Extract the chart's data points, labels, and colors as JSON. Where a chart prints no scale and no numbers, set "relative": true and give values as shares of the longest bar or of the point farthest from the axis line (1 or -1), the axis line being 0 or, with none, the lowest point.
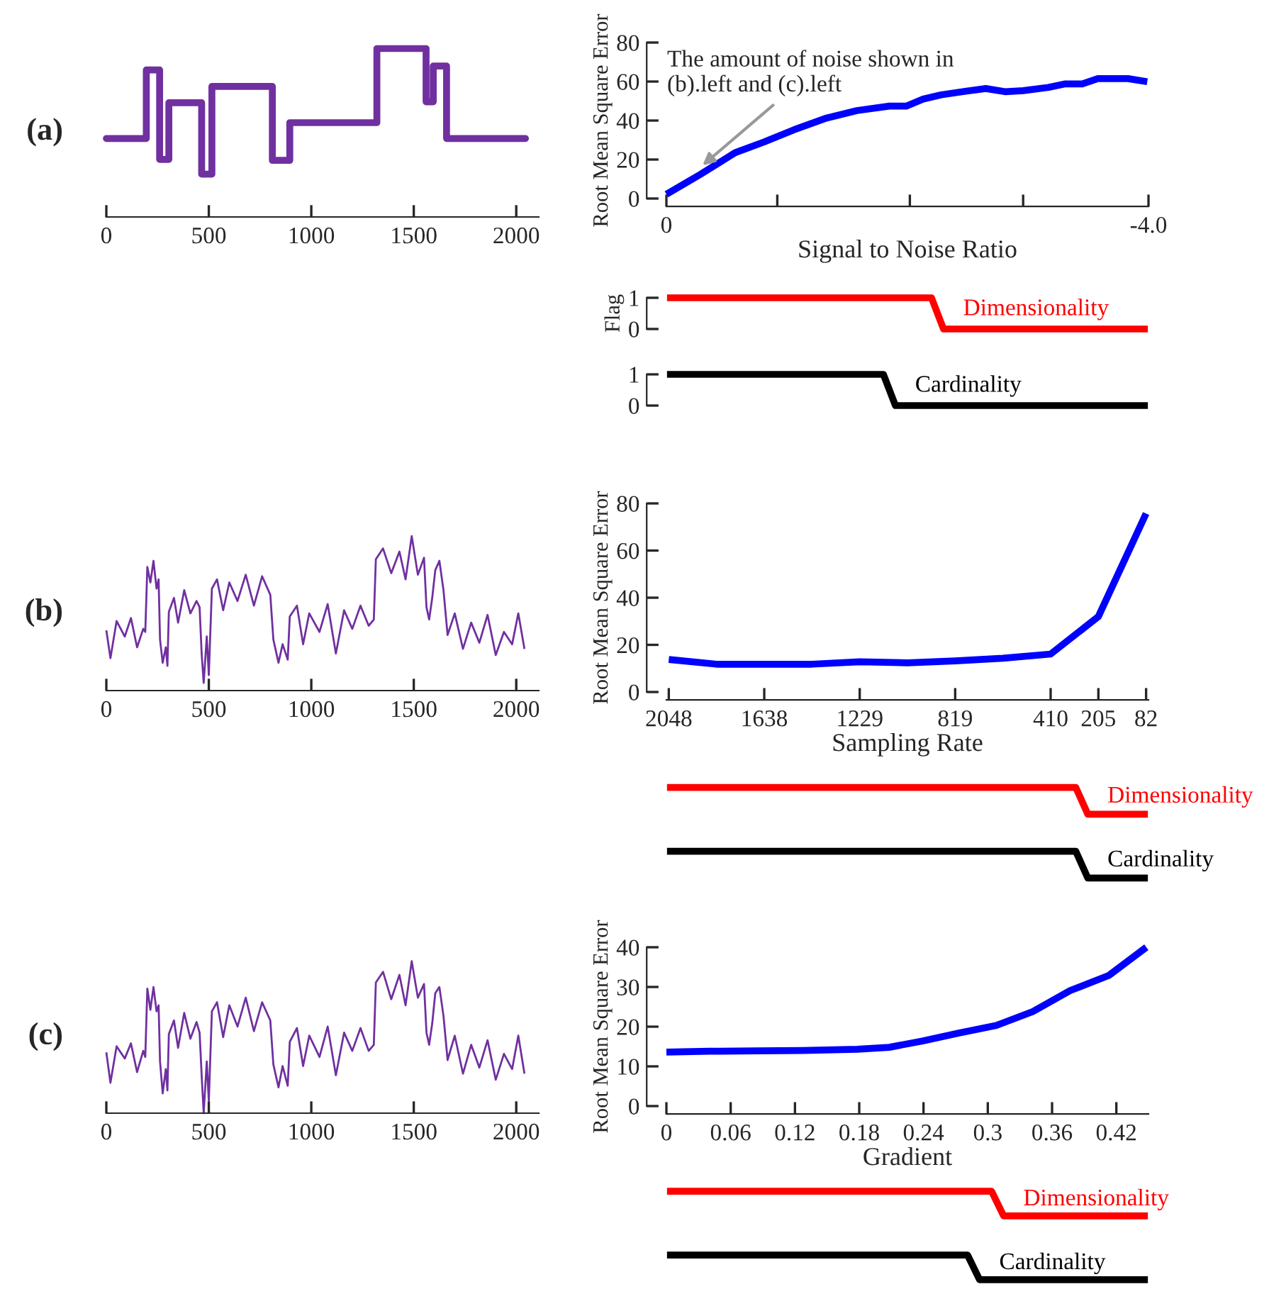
{
  "chart_data": [
    {
      "type": "step",
      "relative": true,
      "annotations": [
        "(a)"
      ],
      "xlim": [
        0,
        2110
      ],
      "xticks": [
        0,
        500,
        1000,
        1500,
        2000
      ],
      "series": [
        {
          "color": "#7030a0",
          "x": [
            0,
            195,
            260,
            305,
            465,
            515,
            810,
            895,
            1320,
            1560,
            1595,
            1660,
            2045
          ],
          "values": [
            0.466,
            0.873,
            0.342,
            0.678,
            0.254,
            0.775,
            0.336,
            0.56,
            1,
            0.684,
            0.896,
            0.466,
            0.466
          ]
        }
      ]
    },
    {
      "type": "line",
      "xlabel": "Signal to Noise Ratio",
      "ylabel": "Root Mean Square Error",
      "xlim": [
        0,
        -4.0
      ],
      "xticks": [
        0,
        {
          "value": -0.92,
          "label": null
        },
        {
          "value": -2.02,
          "label": null
        },
        {
          "value": -2.96,
          "label": null
        },
        {
          "value": -4.0,
          "label": "-4.0"
        }
      ],
      "ylim": [
        0,
        80
      ],
      "yticks": [
        0,
        20,
        40,
        60,
        80
      ],
      "annotations": [
        {
          "text": "The amount of noise shown in\n(b).left and (c).left",
          "x": -0.3,
          "y": 17
        }
      ],
      "series": [
        {
          "color": "#0000ff",
          "x": [
            0,
            -0.28,
            -0.57,
            -0.81,
            -1.06,
            -1.33,
            -1.58,
            -1.85,
            -1.99,
            -2.13,
            -2.28,
            -2.48,
            -2.65,
            -2.81,
            -2.96,
            -3.17,
            -3.31,
            -3.45,
            -3.58,
            -3.83,
            -3.99
          ],
          "values": [
            2.2,
            12.3,
            23.5,
            29,
            35.3,
            41.3,
            45.1,
            47.4,
            47.4,
            51,
            53.2,
            55,
            56.4,
            54.8,
            55.3,
            57,
            58.8,
            58.8,
            61.5,
            61.5,
            59.9
          ]
        }
      ]
    },
    {
      "type": "line",
      "ylabel": "Flag",
      "categories": [
        null,
        null,
        null,
        null,
        null,
        null,
        null,
        null,
        null,
        null,
        null,
        null,
        null,
        null,
        null,
        null,
        null,
        null,
        null,
        null,
        null,
        null,
        null,
        null,
        null,
        null,
        null,
        null,
        null,
        null,
        null,
        null,
        null,
        null,
        null,
        null,
        null,
        null,
        null,
        null,
        null
      ],
      "ylim": [
        0,
        1
      ],
      "yticks": [
        0,
        1
      ],
      "tick_labels": "y",
      "series": [
        {
          "name": "Dimensionality",
          "color": "#ff0000",
          "values": [
            1,
            1,
            1,
            1,
            1,
            1,
            1,
            1,
            1,
            1,
            1,
            1,
            1,
            1,
            1,
            1,
            1,
            1,
            1,
            1,
            1,
            1,
            1,
            0,
            0,
            0,
            0,
            0,
            0,
            0,
            0,
            0,
            0,
            0,
            0,
            0,
            0,
            0,
            0,
            0,
            0
          ]
        }
      ]
    },
    {
      "type": "line",
      "categories": [
        null,
        null,
        null,
        null,
        null,
        null,
        null,
        null,
        null,
        null,
        null,
        null,
        null,
        null,
        null,
        null,
        null,
        null,
        null,
        null,
        null,
        null,
        null,
        null,
        null,
        null,
        null,
        null,
        null,
        null,
        null,
        null,
        null,
        null,
        null,
        null,
        null,
        null,
        null,
        null,
        null
      ],
      "ylim": [
        0,
        1
      ],
      "yticks": [
        0,
        1
      ],
      "tick_labels": "y",
      "series": [
        {
          "name": "Cardinality",
          "color": "#000000",
          "values": [
            1,
            1,
            1,
            1,
            1,
            1,
            1,
            1,
            1,
            1,
            1,
            1,
            1,
            1,
            1,
            1,
            1,
            1,
            1,
            0,
            0,
            0,
            0,
            0,
            0,
            0,
            0,
            0,
            0,
            0,
            0,
            0,
            0,
            0,
            0,
            0,
            0,
            0,
            0,
            0,
            0
          ]
        }
      ]
    },
    {
      "type": "line",
      "relative": true,
      "annotations": [
        "(b)"
      ],
      "xlim": [
        0,
        2110
      ],
      "xticks": [
        0,
        500,
        1000,
        1500,
        2000
      ],
      "series": [
        {
          "color": "#7030a0",
          "x": [
            0,
            20,
            50,
            90,
            120,
            150,
            180,
            190,
            200,
            215,
            230,
            245,
            255,
            262,
            275,
            290,
            298,
            305,
            330,
            350,
            380,
            410,
            440,
            455,
            465,
            475,
            490,
            500,
            515,
            540,
            570,
            600,
            640,
            680,
            720,
            760,
            800,
            815,
            840,
            860,
            885,
            895,
            930,
            960,
            990,
            1040,
            1080,
            1120,
            1160,
            1200,
            1240,
            1280,
            1305,
            1315,
            1350,
            1390,
            1430,
            1460,
            1490,
            1520,
            1550,
            1562,
            1575,
            1590,
            1605,
            1625,
            1645,
            1665,
            1700,
            1740,
            1780,
            1820,
            1860,
            1900,
            1940,
            1980,
            2010,
            2040
          ],
          "values": [
            0.39,
            0.21,
            0.45,
            0.35,
            0.47,
            0.28,
            0.4,
            0.38,
            0.8,
            0.7,
            0.84,
            0.66,
            0.72,
            0.33,
            0.18,
            0.28,
            0.16,
            0.51,
            0.6,
            0.44,
            0.65,
            0.5,
            0.58,
            0.54,
            0.24,
            0.05,
            0.35,
            0.1,
            0.66,
            0.72,
            0.52,
            0.7,
            0.58,
            0.75,
            0.55,
            0.74,
            0.62,
            0.33,
            0.18,
            0.3,
            0.2,
            0.48,
            0.55,
            0.3,
            0.5,
            0.38,
            0.56,
            0.24,
            0.52,
            0.4,
            0.55,
            0.42,
            0.46,
            0.85,
            0.92,
            0.76,
            0.9,
            0.72,
            1,
            0.75,
            0.86,
            0.54,
            0.46,
            0.6,
            0.78,
            0.84,
            0.65,
            0.36,
            0.5,
            0.27,
            0.44,
            0.31,
            0.49,
            0.23,
            0.38,
            0.3,
            0.5,
            0.27
          ]
        }
      ]
    },
    {
      "type": "line",
      "xlabel": "Sampling Rate",
      "ylabel": "Root Mean Square Error",
      "categories": [
        "2048",
        null,
        "1638",
        null,
        "1229",
        null,
        "819",
        null,
        "410",
        "205",
        "82"
      ],
      "ylim": [
        0,
        80
      ],
      "yticks": [
        0,
        20,
        40,
        60,
        80
      ],
      "series": [
        {
          "color": "#0000ff",
          "values": [
            13.8,
            11.8,
            11.8,
            11.8,
            12.8,
            12.4,
            13.2,
            14.3,
            16.1,
            32,
            75.7
          ]
        }
      ]
    },
    {
      "type": "line",
      "relative": true,
      "tick_labels": false,
      "categories": [
        null,
        null,
        null,
        null,
        null,
        null,
        null,
        null,
        null,
        null,
        null,
        null,
        null,
        null,
        null,
        null,
        null,
        null,
        null,
        null,
        null,
        null,
        null,
        null,
        null,
        null,
        null,
        null,
        null,
        null,
        null,
        null,
        null,
        null,
        null,
        null,
        null,
        null,
        null,
        null,
        null
      ],
      "series": [
        {
          "name": "Dimensionality",
          "color": "#ff0000",
          "values": [
            1,
            1,
            1,
            1,
            1,
            1,
            1,
            1,
            1,
            1,
            1,
            1,
            1,
            1,
            1,
            1,
            1,
            1,
            1,
            1,
            1,
            1,
            1,
            1,
            1,
            1,
            1,
            1,
            1,
            1,
            1,
            1,
            1,
            1,
            1,
            0,
            0,
            0,
            0,
            0,
            0
          ]
        }
      ]
    },
    {
      "type": "line",
      "relative": true,
      "tick_labels": false,
      "categories": [
        null,
        null,
        null,
        null,
        null,
        null,
        null,
        null,
        null,
        null,
        null,
        null,
        null,
        null,
        null,
        null,
        null,
        null,
        null,
        null,
        null,
        null,
        null,
        null,
        null,
        null,
        null,
        null,
        null,
        null,
        null,
        null,
        null,
        null,
        null,
        null,
        null,
        null,
        null,
        null,
        null
      ],
      "series": [
        {
          "name": "Cardinality",
          "color": "#000000",
          "values": [
            1,
            1,
            1,
            1,
            1,
            1,
            1,
            1,
            1,
            1,
            1,
            1,
            1,
            1,
            1,
            1,
            1,
            1,
            1,
            1,
            1,
            1,
            1,
            1,
            1,
            1,
            1,
            1,
            1,
            1,
            1,
            1,
            1,
            1,
            1,
            0,
            0,
            0,
            0,
            0,
            0
          ]
        }
      ]
    },
    {
      "type": "line",
      "relative": true,
      "annotations": [
        "(c)"
      ],
      "xlim": [
        0,
        2110
      ],
      "xticks": [
        0,
        500,
        1000,
        1500,
        2000
      ],
      "series": [
        {
          "color": "#7030a0",
          "x": [
            0,
            20,
            50,
            90,
            120,
            150,
            180,
            190,
            200,
            215,
            230,
            245,
            255,
            262,
            275,
            290,
            298,
            305,
            330,
            350,
            380,
            410,
            440,
            455,
            465,
            475,
            490,
            500,
            515,
            540,
            570,
            600,
            640,
            680,
            720,
            760,
            800,
            815,
            840,
            860,
            885,
            895,
            930,
            960,
            990,
            1040,
            1080,
            1120,
            1160,
            1200,
            1240,
            1280,
            1305,
            1315,
            1350,
            1390,
            1430,
            1460,
            1490,
            1520,
            1550,
            1562,
            1575,
            1590,
            1605,
            1625,
            1645,
            1665,
            1700,
            1740,
            1780,
            1820,
            1860,
            1900,
            1940,
            1980,
            2010,
            2040
          ],
          "values": [
            0.4,
            0.2,
            0.44,
            0.36,
            0.46,
            0.27,
            0.41,
            0.37,
            0.82,
            0.68,
            0.83,
            0.67,
            0.71,
            0.34,
            0.13,
            0.29,
            0.15,
            0.52,
            0.61,
            0.43,
            0.66,
            0.49,
            0.6,
            0.53,
            0.25,
            0.0,
            0.34,
            0.08,
            0.67,
            0.73,
            0.5,
            0.71,
            0.57,
            0.76,
            0.54,
            0.73,
            0.61,
            0.32,
            0.17,
            0.31,
            0.18,
            0.47,
            0.56,
            0.31,
            0.51,
            0.37,
            0.57,
            0.25,
            0.53,
            0.41,
            0.56,
            0.41,
            0.45,
            0.86,
            0.93,
            0.75,
            0.91,
            0.71,
            1,
            0.76,
            0.85,
            0.53,
            0.45,
            0.59,
            0.79,
            0.83,
            0.64,
            0.35,
            0.51,
            0.26,
            0.45,
            0.3,
            0.48,
            0.22,
            0.39,
            0.29,
            0.51,
            0.26
          ]
        }
      ]
    },
    {
      "type": "line",
      "xlabel": "Gradient",
      "ylabel": "Root Mean Square Error",
      "xlim": [
        0,
        0.45
      ],
      "xticks": [
        0,
        0.06,
        0.12,
        0.18,
        0.24,
        0.3,
        0.36,
        0.42
      ],
      "ylim": [
        0,
        40
      ],
      "yticks": [
        0,
        10,
        20,
        30,
        40
      ],
      "series": [
        {
          "color": "#0000ff",
          "x": [
            0,
            0.04,
            0.084,
            0.127,
            0.178,
            0.208,
            0.239,
            0.273,
            0.308,
            0.342,
            0.377,
            0.413,
            0.448
          ],
          "values": [
            13.6,
            13.8,
            13.9,
            14.0,
            14.3,
            14.8,
            16.4,
            18.4,
            20.3,
            23.8,
            29.1,
            32.9,
            40
          ]
        }
      ]
    },
    {
      "type": "line",
      "relative": true,
      "tick_labels": false,
      "categories": [
        null,
        null,
        null,
        null,
        null,
        null,
        null,
        null,
        null,
        null,
        null,
        null,
        null,
        null,
        null,
        null,
        null,
        null,
        null,
        null,
        null,
        null,
        null,
        null,
        null,
        null,
        null,
        null,
        null,
        null,
        null,
        null,
        null,
        null,
        null,
        null,
        null,
        null,
        null,
        null,
        null
      ],
      "series": [
        {
          "name": "Dimensionality",
          "color": "#ff0000",
          "values": [
            1,
            1,
            1,
            1,
            1,
            1,
            1,
            1,
            1,
            1,
            1,
            1,
            1,
            1,
            1,
            1,
            1,
            1,
            1,
            1,
            1,
            1,
            1,
            1,
            1,
            1,
            1,
            1,
            0,
            0,
            0,
            0,
            0,
            0,
            0,
            0,
            0,
            0,
            0,
            0,
            0
          ]
        }
      ]
    },
    {
      "type": "line",
      "relative": true,
      "tick_labels": false,
      "categories": [
        null,
        null,
        null,
        null,
        null,
        null,
        null,
        null,
        null,
        null,
        null,
        null,
        null,
        null,
        null,
        null,
        null,
        null,
        null,
        null,
        null,
        null,
        null,
        null,
        null,
        null,
        null,
        null,
        null,
        null,
        null,
        null,
        null,
        null,
        null,
        null,
        null,
        null,
        null,
        null,
        null
      ],
      "series": [
        {
          "name": "Cardinality",
          "color": "#000000",
          "values": [
            1,
            1,
            1,
            1,
            1,
            1,
            1,
            1,
            1,
            1,
            1,
            1,
            1,
            1,
            1,
            1,
            1,
            1,
            1,
            1,
            1,
            1,
            1,
            1,
            1,
            1,
            0,
            0,
            0,
            0,
            0,
            0,
            0,
            0,
            0,
            0,
            0,
            0,
            0,
            0,
            0
          ]
        }
      ]
    }
  ]
}
